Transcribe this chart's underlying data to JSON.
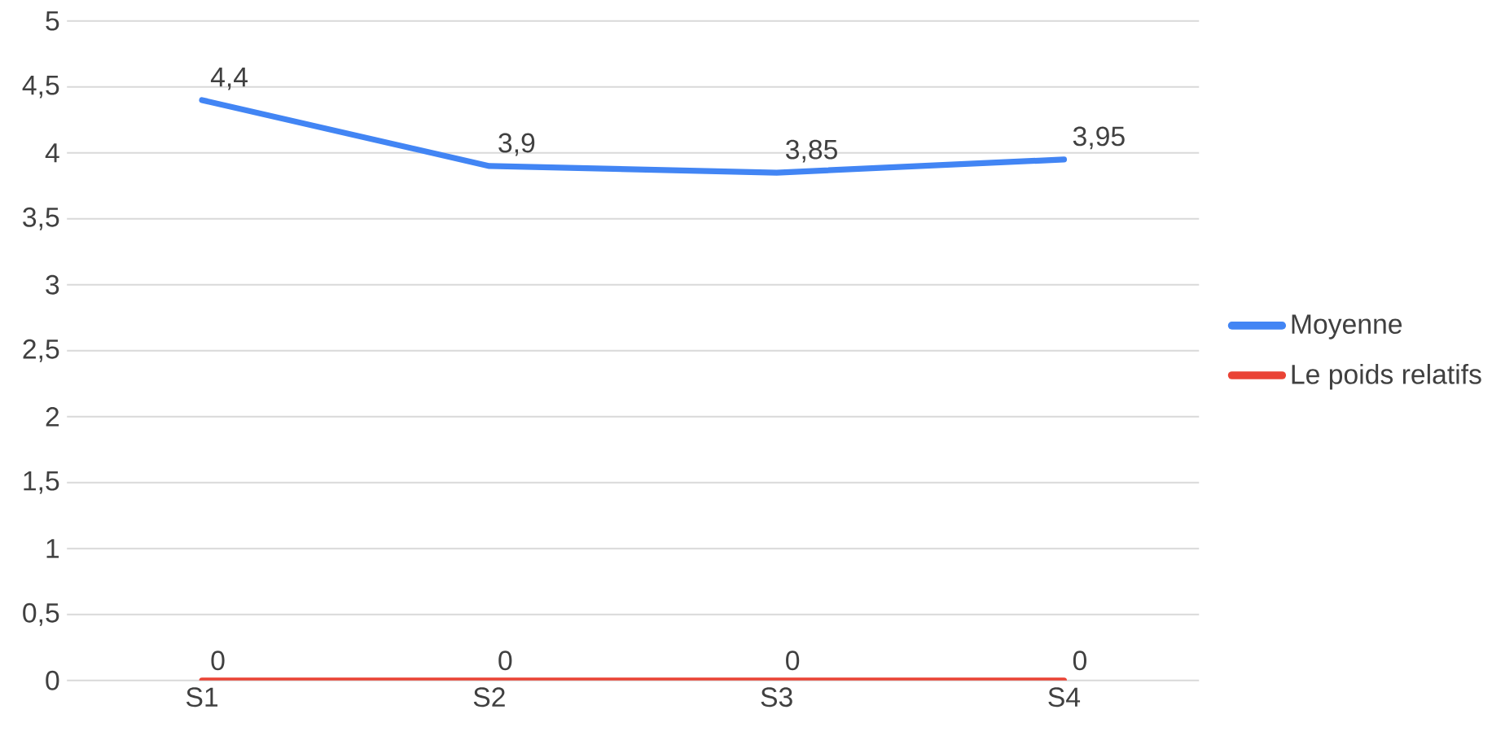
{
  "chart_data": {
    "type": "line",
    "categories": [
      "S1",
      "S2",
      "S3",
      "S4"
    ],
    "series": [
      {
        "name": "Moyenne",
        "color": "#4285f4",
        "values": [
          4.4,
          3.9,
          3.85,
          3.95
        ],
        "value_labels": [
          "4,4",
          "3,9",
          "3,85",
          "3,95"
        ]
      },
      {
        "name": "Le poids relatifs",
        "color": "#ea4335",
        "values": [
          0,
          0,
          0,
          0
        ],
        "value_labels": [
          "0",
          "0",
          "0",
          "0"
        ]
      }
    ],
    "ylim": [
      0,
      5
    ],
    "yticks": [
      0,
      {
        "value": 0.5,
        "label": "0,5"
      },
      1,
      {
        "value": 1.5,
        "label": "1,5"
      },
      2,
      {
        "value": 2.5,
        "label": "2,5"
      },
      3,
      {
        "value": 3.5,
        "label": "3,5"
      },
      4,
      {
        "value": 4.5,
        "label": "4,5"
      },
      5
    ],
    "grid": "y",
    "legend": "right",
    "marker": "none",
    "line_style": "solid"
  }
}
